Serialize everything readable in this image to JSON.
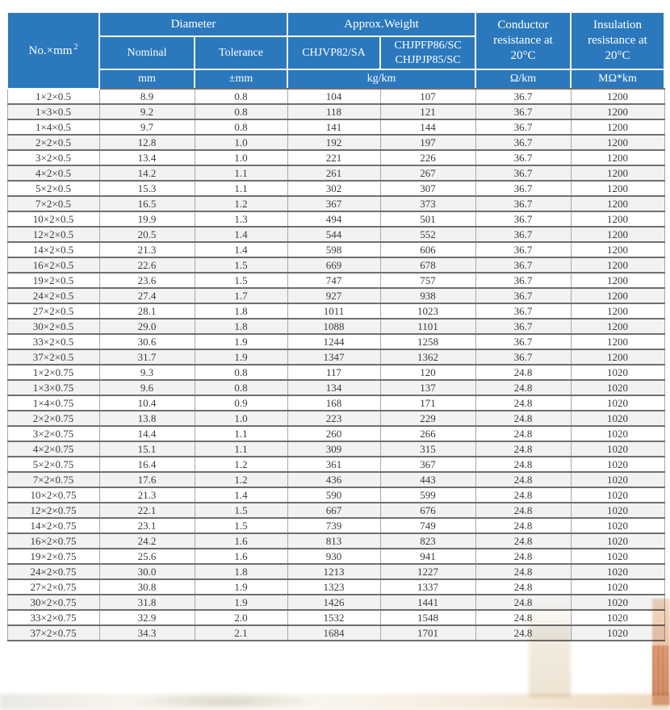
{
  "colors": {
    "header_bg": "#2b78bd",
    "header_text": "#ffffff",
    "row_alt_bg": "#f2f2f2",
    "grid_dark": "#6f6f6f",
    "grid_light": "#a8a8a8",
    "body_text": "#3a3a3a"
  },
  "table": {
    "header": {
      "no_mm_base": "No.×mm",
      "no_mm_sup": "2",
      "diameter": "Diameter",
      "approx_weight": "Approx.Weight",
      "nominal": "Nominal",
      "tolerance": "Tolerance",
      "weight_type_a": "CHJVP82/SA",
      "weight_type_b_line1": "CHJPFP86/SC",
      "weight_type_b_line2": "CHJPJP85/SC",
      "conductor_resistance": "Conductor resistance at 20°C",
      "insulation_resistance": "Insulation resistance at 20°C"
    },
    "units": {
      "mm": "mm",
      "tolerance": "±mm",
      "weight": "kg/km",
      "conductor": "Ω/km",
      "insulation": "MΩ*km"
    },
    "rows": [
      [
        "1×2×0.5",
        "8.9",
        "0.8",
        "104",
        "107",
        "36.7",
        "1200"
      ],
      [
        "1×3×0.5",
        "9.2",
        "0.8",
        "118",
        "121",
        "36.7",
        "1200"
      ],
      [
        "1×4×0.5",
        "9.7",
        "0.8",
        "141",
        "144",
        "36.7",
        "1200"
      ],
      [
        "2×2×0.5",
        "12.8",
        "1.0",
        "192",
        "197",
        "36.7",
        "1200"
      ],
      [
        "3×2×0.5",
        "13.4",
        "1.0",
        "221",
        "226",
        "36.7",
        "1200"
      ],
      [
        "4×2×0.5",
        "14.2",
        "1.1",
        "261",
        "267",
        "36.7",
        "1200"
      ],
      [
        "5×2×0.5",
        "15.3",
        "1.1",
        "302",
        "307",
        "36.7",
        "1200"
      ],
      [
        "7×2×0.5",
        "16.5",
        "1.2",
        "367",
        "373",
        "36.7",
        "1200"
      ],
      [
        "10×2×0.5",
        "19.9",
        "1.3",
        "494",
        "501",
        "36.7",
        "1200"
      ],
      [
        "12×2×0.5",
        "20.5",
        "1.4",
        "544",
        "552",
        "36.7",
        "1200"
      ],
      [
        "14×2×0.5",
        "21.3",
        "1.4",
        "598",
        "606",
        "36.7",
        "1200"
      ],
      [
        "16×2×0.5",
        "22.6",
        "1.5",
        "669",
        "678",
        "36.7",
        "1200"
      ],
      [
        "19×2×0.5",
        "23.6",
        "1.5",
        "747",
        "757",
        "36.7",
        "1200"
      ],
      [
        "24×2×0.5",
        "27.4",
        "1.7",
        "927",
        "938",
        "36.7",
        "1200"
      ],
      [
        "27×2×0.5",
        "28.1",
        "1.8",
        "1011",
        "1023",
        "36.7",
        "1200"
      ],
      [
        "30×2×0.5",
        "29.0",
        "1.8",
        "1088",
        "1101",
        "36.7",
        "1200"
      ],
      [
        "33×2×0.5",
        "30.6",
        "1.9",
        "1244",
        "1258",
        "36.7",
        "1200"
      ],
      [
        "37×2×0.5",
        "31.7",
        "1.9",
        "1347",
        "1362",
        "36.7",
        "1200"
      ],
      [
        "1×2×0.75",
        "9.3",
        "0.8",
        "117",
        "120",
        "24.8",
        "1020"
      ],
      [
        "1×3×0.75",
        "9.6",
        "0.8",
        "134",
        "137",
        "24.8",
        "1020"
      ],
      [
        "1×4×0.75",
        "10.4",
        "0.9",
        "168",
        "171",
        "24.8",
        "1020"
      ],
      [
        "2×2×0.75",
        "13.8",
        "1.0",
        "223",
        "229",
        "24.8",
        "1020"
      ],
      [
        "3×2×0.75",
        "14.4",
        "1.1",
        "260",
        "266",
        "24.8",
        "1020"
      ],
      [
        "4×2×0.75",
        "15.1",
        "1.1",
        "309",
        "315",
        "24.8",
        "1020"
      ],
      [
        "5×2×0.75",
        "16.4",
        "1.2",
        "361",
        "367",
        "24.8",
        "1020"
      ],
      [
        "7×2×0.75",
        "17.6",
        "1.2",
        "436",
        "443",
        "24.8",
        "1020"
      ],
      [
        "10×2×0.75",
        "21.3",
        "1.4",
        "590",
        "599",
        "24.8",
        "1020"
      ],
      [
        "12×2×0.75",
        "22.1",
        "1.5",
        "667",
        "676",
        "24.8",
        "1020"
      ],
      [
        "14×2×0.75",
        "23.1",
        "1.5",
        "739",
        "749",
        "24.8",
        "1020"
      ],
      [
        "16×2×0.75",
        "24.2",
        "1.6",
        "813",
        "823",
        "24.8",
        "1020"
      ],
      [
        "19×2×0.75",
        "25.6",
        "1.6",
        "930",
        "941",
        "24.8",
        "1020"
      ],
      [
        "24×2×0.75",
        "30.0",
        "1.8",
        "1213",
        "1227",
        "24.8",
        "1020"
      ],
      [
        "27×2×0.75",
        "30.8",
        "1.9",
        "1323",
        "1337",
        "24.8",
        "1020"
      ],
      [
        "30×2×0.75",
        "31.8",
        "1.9",
        "1426",
        "1441",
        "24.8",
        "1020"
      ],
      [
        "33×2×0.75",
        "32.9",
        "2.0",
        "1532",
        "1548",
        "24.8",
        "1020"
      ],
      [
        "37×2×0.75",
        "34.3",
        "2.1",
        "1684",
        "1701",
        "24.8",
        "1020"
      ]
    ]
  }
}
